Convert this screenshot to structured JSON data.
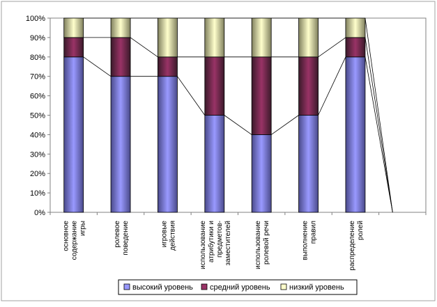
{
  "chart_data": {
    "type": "bar",
    "stacked": "percent",
    "categories": [
      [
        "основное",
        "содержание",
        "игры"
      ],
      [
        "ролевое",
        "поведение"
      ],
      [
        "игровые",
        "действия"
      ],
      [
        "использование",
        "атрибутики и",
        "предметов-",
        "заместителей"
      ],
      [
        "использование",
        "ролевой речи"
      ],
      [
        "выполнение",
        "правил"
      ],
      [
        "распределение",
        "ролей"
      ],
      [
        ""
      ]
    ],
    "series": [
      {
        "name": "высокий уровень",
        "values": [
          80,
          70,
          70,
          50,
          40,
          50,
          80,
          0
        ],
        "color": "#9999ff"
      },
      {
        "name": "средний уровень",
        "values": [
          10,
          20,
          10,
          30,
          40,
          30,
          10,
          0
        ],
        "color": "#993366"
      },
      {
        "name": "низкий уровень",
        "values": [
          10,
          10,
          20,
          20,
          20,
          20,
          10,
          0
        ],
        "color": "#ffffcc"
      }
    ],
    "ylim": [
      0,
      100
    ],
    "ytick_labels": [
      "0%",
      "10%",
      "20%",
      "30%",
      "40%",
      "50%",
      "60%",
      "70%",
      "80%",
      "90%",
      "100%"
    ],
    "series_lines": true,
    "legend_position": "bottom",
    "grid": false
  }
}
